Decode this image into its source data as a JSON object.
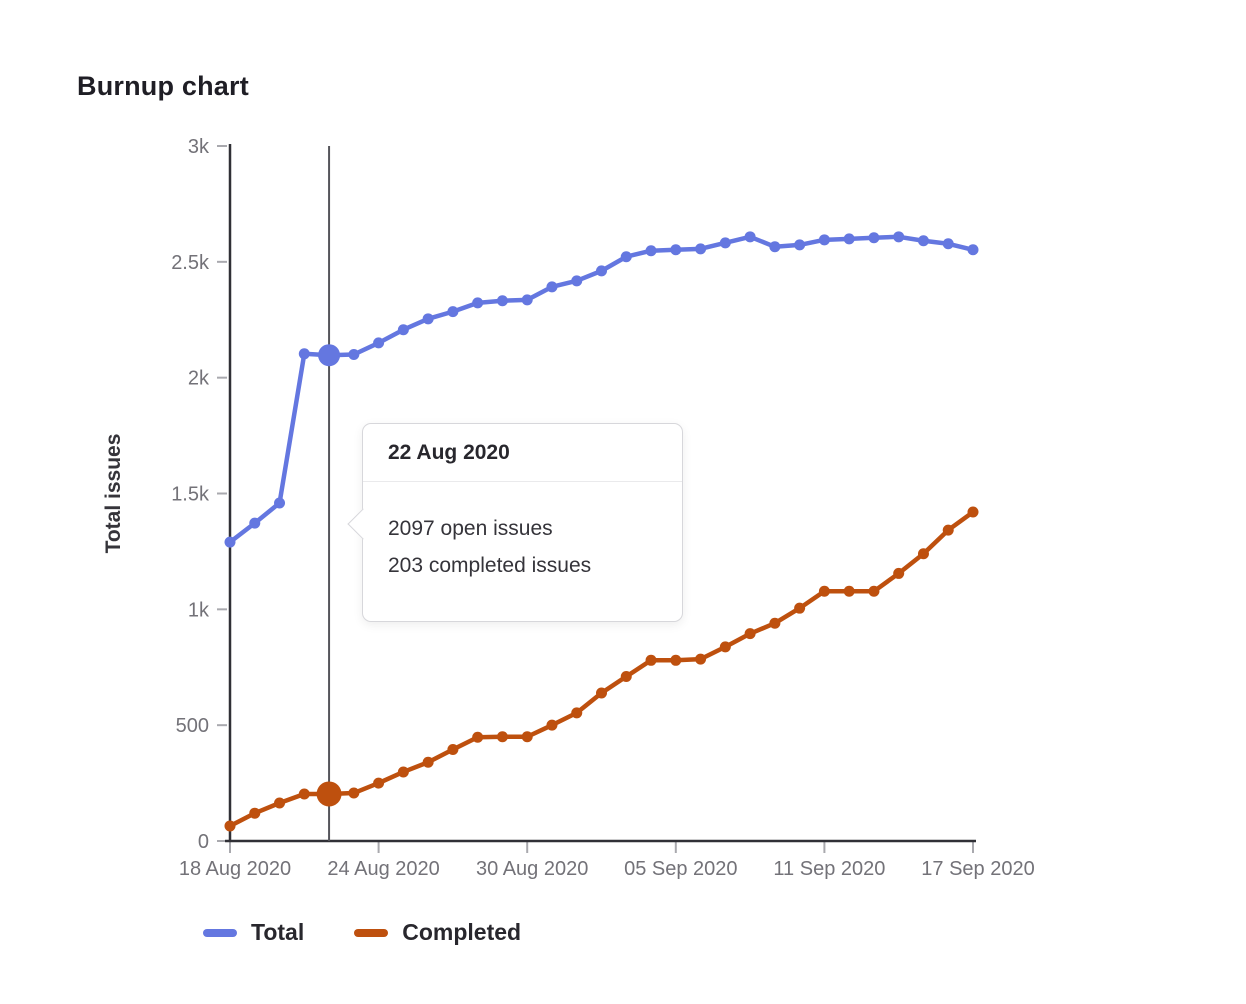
{
  "page": {
    "title": "Burnup chart"
  },
  "chart_data": {
    "type": "line",
    "title": "Burnup chart",
    "xlabel": "",
    "ylabel": "Total issues",
    "ylim": [
      0,
      3000
    ],
    "grid": false,
    "legend_position": "bottom",
    "y_ticks": [
      {
        "label": "0",
        "value": 0
      },
      {
        "label": "500",
        "value": 500
      },
      {
        "label": "1k",
        "value": 1000
      },
      {
        "label": "1.5k",
        "value": 1500
      },
      {
        "label": "2k",
        "value": 2000
      },
      {
        "label": "2.5k",
        "value": 2500
      },
      {
        "label": "3k",
        "value": 3000
      }
    ],
    "x_tick_labels": [
      "18 Aug 2020",
      "24 Aug 2020",
      "30 Aug 2020",
      "05 Sep 2020",
      "11 Sep 2020",
      "17 Sep 2020"
    ],
    "x_tick_day_indices": [
      0,
      6,
      12,
      18,
      24,
      30
    ],
    "x": [
      "18 Aug 2020",
      "19 Aug 2020",
      "20 Aug 2020",
      "21 Aug 2020",
      "22 Aug 2020",
      "23 Aug 2020",
      "24 Aug 2020",
      "25 Aug 2020",
      "26 Aug 2020",
      "27 Aug 2020",
      "28 Aug 2020",
      "29 Aug 2020",
      "30 Aug 2020",
      "31 Aug 2020",
      "01 Sep 2020",
      "02 Sep 2020",
      "03 Sep 2020",
      "04 Sep 2020",
      "05 Sep 2020",
      "06 Sep 2020",
      "07 Sep 2020",
      "08 Sep 2020",
      "09 Sep 2020",
      "10 Sep 2020",
      "11 Sep 2020",
      "12 Sep 2020",
      "13 Sep 2020",
      "14 Sep 2020",
      "15 Sep 2020",
      "16 Sep 2020",
      "17 Sep 2020"
    ],
    "series": [
      {
        "name": "Total",
        "color": "#6477e0",
        "values": [
          1290,
          1372,
          1459,
          2103,
          2097,
          2100,
          2150,
          2207,
          2254,
          2285,
          2323,
          2332,
          2336,
          2392,
          2418,
          2461,
          2522,
          2548,
          2552,
          2556,
          2582,
          2608,
          2565,
          2573,
          2595,
          2599,
          2604,
          2608,
          2591,
          2578,
          2552
        ]
      },
      {
        "name": "Completed",
        "color": "#be500e",
        "values": [
          65,
          120,
          164,
          203,
          203,
          207,
          250,
          298,
          340,
          395,
          448,
          450,
          450,
          500,
          553,
          639,
          710,
          780,
          780,
          785,
          838,
          895,
          940,
          1005,
          1078,
          1078,
          1078,
          1155,
          1240,
          1342,
          1420
        ]
      }
    ],
    "highlight": {
      "x_index": 4,
      "date": "22 Aug 2020",
      "open_issues": 2097,
      "completed_issues": 203
    }
  },
  "tooltip": {
    "title": "22 Aug 2020",
    "lines": [
      "2097 open issues",
      "203 completed issues"
    ]
  },
  "legend": {
    "items": [
      {
        "label": "Total",
        "color": "#6477e0"
      },
      {
        "label": "Completed",
        "color": "#be500e"
      }
    ]
  },
  "colors": {
    "axis": "#303036",
    "tick": "#a9a9ae",
    "muted_text": "#737278",
    "dark_text": "#35343a",
    "hover_line": "#55555b",
    "background": "#ffffff"
  }
}
